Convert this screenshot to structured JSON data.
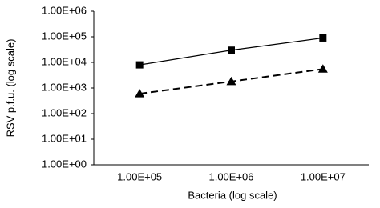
{
  "chart_data": {
    "type": "line",
    "x_label": "Bacteria (log scale)",
    "y_label": "RSV p.f.u. (log scale)",
    "categories": [
      "1.00E+05",
      "1.00E+06",
      "1.00E+07"
    ],
    "series": [
      {
        "color": "#000000",
        "line_style": "solid",
        "marker": "square",
        "values": [
          8000,
          30000,
          90000
        ]
      },
      {
        "color": "#000000",
        "line_style": "dashed",
        "marker": "triangle",
        "values": [
          600,
          1800,
          5500
        ]
      }
    ],
    "y_log": true,
    "ylim": [
      1,
      1000000
    ],
    "yticks": [
      {
        "value": 1000000,
        "label": "1.00E+06"
      },
      {
        "value": 100000,
        "label": "1.00E+05"
      },
      {
        "value": 10000,
        "label": "1.00E+04"
      },
      {
        "value": 1000,
        "label": "1.00E+03"
      },
      {
        "value": 100,
        "label": "1.00E+02"
      },
      {
        "value": 10,
        "label": "1.00E+01"
      },
      {
        "value": 1,
        "label": "1.00E+00"
      }
    ],
    "grid": false
  }
}
